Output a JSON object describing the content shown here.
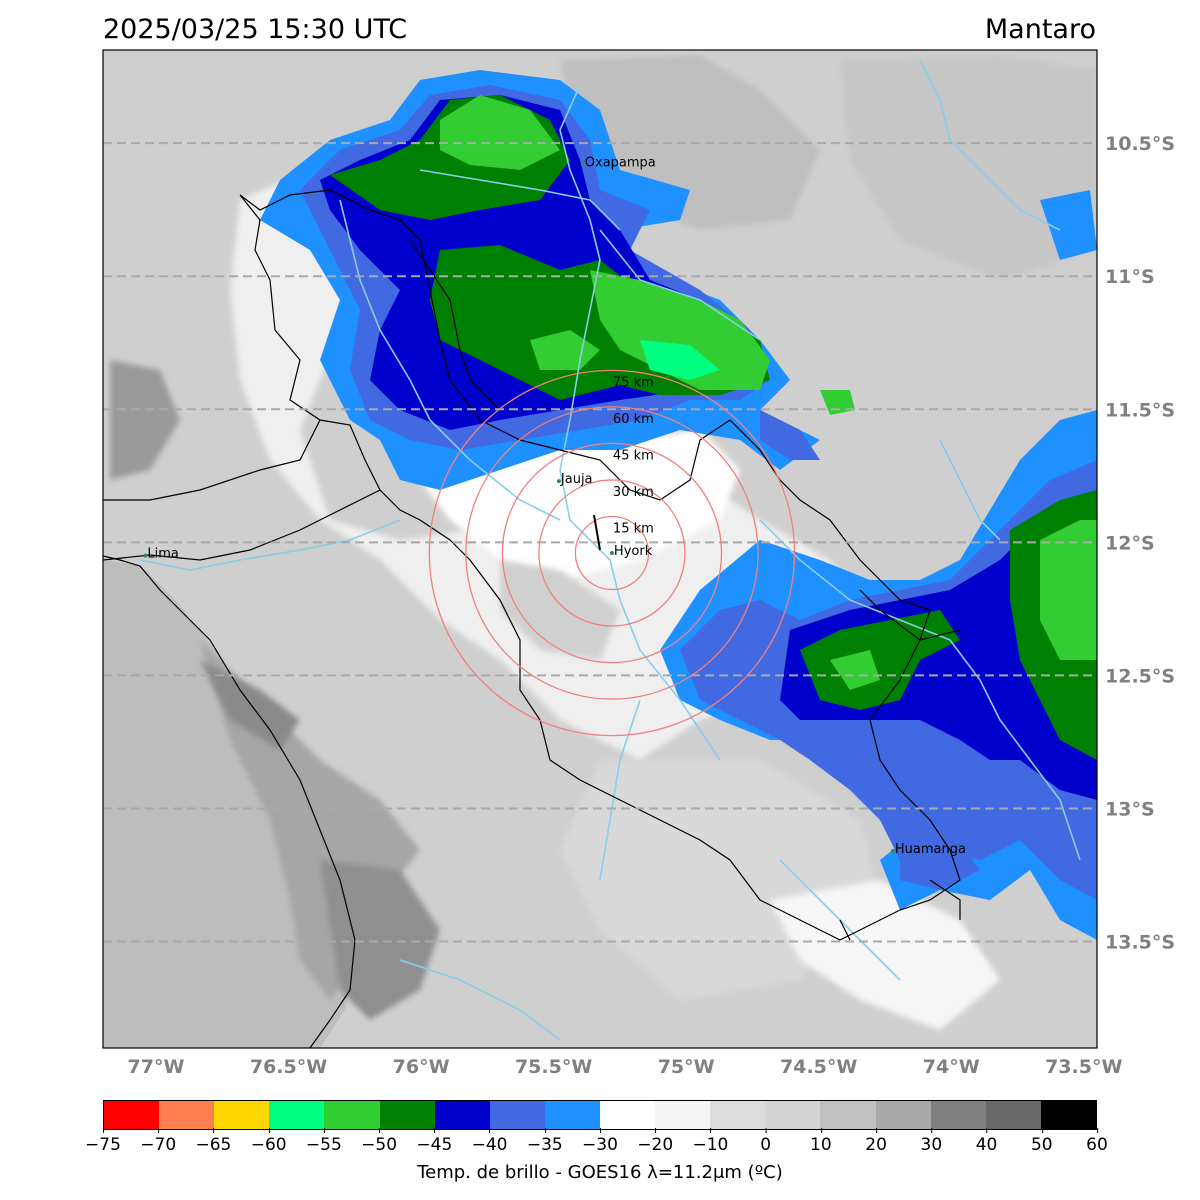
{
  "header": {
    "datetime": "2025/03/25 15:30 UTC",
    "region": "Mantaro"
  },
  "map": {
    "lon_range": [
      -77.2,
      -73.45
    ],
    "lat_range": [
      -13.9,
      -10.15
    ],
    "lat_ticks": [
      {
        "value": -10.5,
        "label": "10.5°S"
      },
      {
        "value": -11.0,
        "label": "11°S"
      },
      {
        "value": -11.5,
        "label": "11.5°S"
      },
      {
        "value": -12.0,
        "label": "12°S"
      },
      {
        "value": -12.5,
        "label": "12.5°S"
      },
      {
        "value": -13.0,
        "label": "13°S"
      },
      {
        "value": -13.5,
        "label": "13.5°S"
      }
    ],
    "lon_ticks": [
      {
        "value": -77.0,
        "label": "77°W"
      },
      {
        "value": -76.5,
        "label": "76.5°W"
      },
      {
        "value": -76.0,
        "label": "76°W"
      },
      {
        "value": -75.5,
        "label": "75.5°W"
      },
      {
        "value": -75.0,
        "label": "75°W"
      },
      {
        "value": -74.5,
        "label": "74.5°W"
      },
      {
        "value": -74.0,
        "label": "74°W"
      },
      {
        "value": -73.5,
        "label": "73.5°W"
      }
    ],
    "cities": [
      {
        "name": "Oxapampa",
        "lon": -75.39,
        "lat": -10.58
      },
      {
        "name": "Jauja",
        "lon": -75.48,
        "lat": -11.77
      },
      {
        "name": "Hyork",
        "lon": -75.28,
        "lat": -12.04
      },
      {
        "name": "Lima",
        "lon": -77.04,
        "lat": -12.05
      },
      {
        "name": "Huamanga",
        "lon": -74.22,
        "lat": -13.16
      }
    ],
    "radar": {
      "name": "Hyork",
      "lon": -75.28,
      "lat": -12.04
    },
    "range_rings": [
      {
        "km": 15,
        "label": "15 km"
      },
      {
        "km": 30,
        "label": "30 km"
      },
      {
        "km": 45,
        "label": "45 km"
      },
      {
        "km": 60,
        "label": "60 km"
      },
      {
        "km": 75,
        "label": "75 km"
      }
    ],
    "colors": {
      "ring": "#f08080",
      "gridline": "#a9a9a9",
      "river": "#87ceeb",
      "boundary": "#000000"
    }
  },
  "colorbar": {
    "label": "Temp. de brillo - GOES16 λ=11.2μm (ºC)",
    "colors": [
      "#ff0000",
      "#ff7f50",
      "#ffd700",
      "#00ff7f",
      "#32cd32",
      "#008000",
      "#0000cd",
      "#4169e1",
      "#1e90ff",
      "#ffffff",
      "#f5f5f5",
      "#dcdcdc",
      "#d3d3d3",
      "#c0c0c0",
      "#a9a9a9",
      "#808080",
      "#696969",
      "#000000"
    ],
    "ticks": [
      "−75",
      "−70",
      "−65",
      "−60",
      "−55",
      "−50",
      "−45",
      "−40",
      "−35",
      "−30",
      "−20",
      "−10",
      "0",
      "10",
      "20",
      "30",
      "40",
      "50",
      "60"
    ]
  }
}
